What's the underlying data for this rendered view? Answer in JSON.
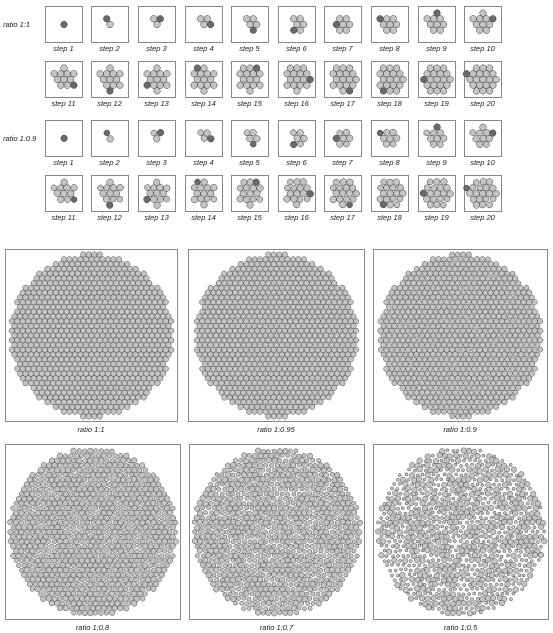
{
  "colors": {
    "disk_fill": "#c4c4c4",
    "disk_stroke": "#3a3a3a",
    "highlight_fill": "#6a6a6a",
    "frame_stroke": "#555555",
    "label_color": "#222222"
  },
  "step_rows": [
    {
      "row_label": "ratio 1:1",
      "size_ratio": 1.0,
      "steps": [
        "step 1",
        "step 2",
        "step 3",
        "step 4",
        "step 5",
        "step 6",
        "step 7",
        "step 8",
        "step 9",
        "step 10",
        "step 11",
        "step 12",
        "step 13",
        "step 14",
        "step 15",
        "step 16",
        "step 17",
        "step 18",
        "step 19",
        "step 20"
      ]
    },
    {
      "row_label": "ratio 1:0.9",
      "size_ratio": 0.9,
      "steps": [
        "step 1",
        "step 2",
        "step 3",
        "step 4",
        "step 5",
        "step 6",
        "step 7",
        "step 8",
        "step 9",
        "step 10",
        "step 11",
        "step 12",
        "step 13",
        "step 14",
        "step 15",
        "step 16",
        "step 17",
        "step 18",
        "step 19",
        "step 20"
      ]
    }
  ],
  "packings": [
    {
      "label": "ratio 1:1",
      "size_ratio": 1.0
    },
    {
      "label": "ratio 1:0.95",
      "size_ratio": 0.95
    },
    {
      "label": "ratio 1:0.9",
      "size_ratio": 0.9
    },
    {
      "label": "ratio 1:0.8",
      "size_ratio": 0.8
    },
    {
      "label": "ratio 1:0.7",
      "size_ratio": 0.7
    },
    {
      "label": "ratio 1:0.5",
      "size_ratio": 0.5
    }
  ]
}
